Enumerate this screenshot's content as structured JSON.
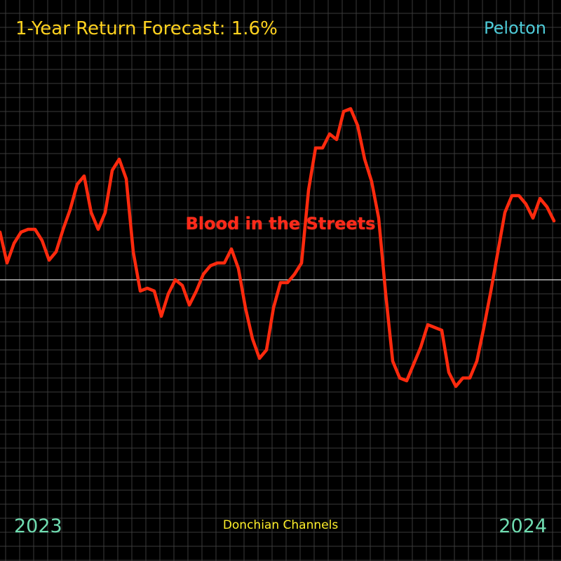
{
  "header": {
    "title": "1-Year Return Forecast: 1.6%",
    "ticker": "Peloton"
  },
  "footer": {
    "source": "Donchian Channels"
  },
  "chart_data": {
    "type": "line",
    "title": "1-Year Return Forecast: 1.6%",
    "subtitle": "Peloton",
    "annotation": "Blood in the Streets",
    "x_start_label": "2023",
    "x_end_label": "2024",
    "xlabel": "",
    "ylabel": "",
    "baseline": 0,
    "grid": true,
    "ylim": [
      -1,
      1
    ],
    "series": [
      {
        "color": "#ff2a0e",
        "values": [
          0.17,
          0.06,
          0.13,
          0.17,
          0.18,
          0.18,
          0.14,
          0.07,
          0.1,
          0.18,
          0.25,
          0.34,
          0.37,
          0.24,
          0.18,
          0.24,
          0.39,
          0.43,
          0.36,
          0.1,
          -0.04,
          -0.03,
          -0.04,
          -0.13,
          -0.05,
          0.0,
          -0.02,
          -0.09,
          -0.04,
          0.02,
          0.05,
          0.06,
          0.06,
          0.11,
          0.04,
          -0.1,
          -0.21,
          -0.28,
          -0.25,
          -0.1,
          -0.01,
          -0.01,
          0.02,
          0.06,
          0.32,
          0.47,
          0.47,
          0.52,
          0.5,
          0.6,
          0.61,
          0.55,
          0.43,
          0.35,
          0.22,
          -0.05,
          -0.29,
          -0.35,
          -0.36,
          -0.3,
          -0.24,
          -0.16,
          -0.17,
          -0.18,
          -0.33,
          -0.38,
          -0.35,
          -0.35,
          -0.29,
          -0.17,
          -0.04,
          0.1,
          0.24,
          0.3,
          0.3,
          0.27,
          0.22,
          0.29,
          0.26,
          0.21
        ]
      }
    ],
    "baseline_color": "#dddddd",
    "grid_color": "#3a3a3a",
    "background": "#000000"
  }
}
